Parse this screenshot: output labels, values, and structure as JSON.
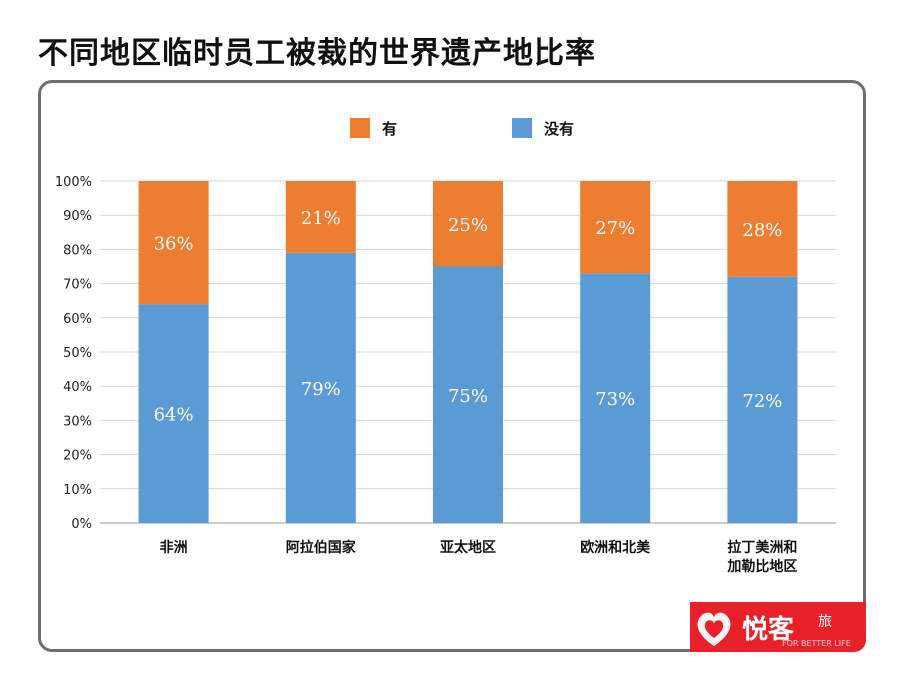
{
  "page": {
    "title": "不同地区临时员工被裁的世界遗产地比率"
  },
  "chart_data": {
    "type": "bar",
    "stacked": true,
    "percent": true,
    "categories": [
      "非洲",
      "阿拉伯国家",
      "亚太地区",
      "欧洲和北美",
      "拉丁美洲和加勒比地区"
    ],
    "category_lines": [
      [
        "非洲"
      ],
      [
        "阿拉伯国家"
      ],
      [
        "亚太地区"
      ],
      [
        "欧洲和北美"
      ],
      [
        "拉丁美洲和",
        "加勒比地区"
      ]
    ],
    "series": [
      {
        "name": "没有",
        "color": "#5b9bd5",
        "values": [
          64,
          79,
          75,
          73,
          72
        ],
        "labels": [
          "64%",
          "79%",
          "75%",
          "73%",
          "72%"
        ]
      },
      {
        "name": "有",
        "color": "#ed7d31",
        "values": [
          36,
          21,
          25,
          27,
          28
        ],
        "labels": [
          "36%",
          "21%",
          "25%",
          "27%",
          "28%"
        ]
      }
    ],
    "legend_order": [
      "有",
      "没有"
    ],
    "legend_position": "top-center",
    "ylim": [
      0,
      100
    ],
    "yticks": [
      "0%",
      "10%",
      "20%",
      "30%",
      "40%",
      "50%",
      "60%",
      "70%",
      "80%",
      "90%",
      "100%"
    ],
    "grid": true,
    "title": "",
    "xlabel": "",
    "ylabel": ""
  },
  "logo": {
    "text": "悦客",
    "small_text": "旅",
    "tagline": "FOR BETTER LIFE",
    "color": "#e8202a"
  }
}
